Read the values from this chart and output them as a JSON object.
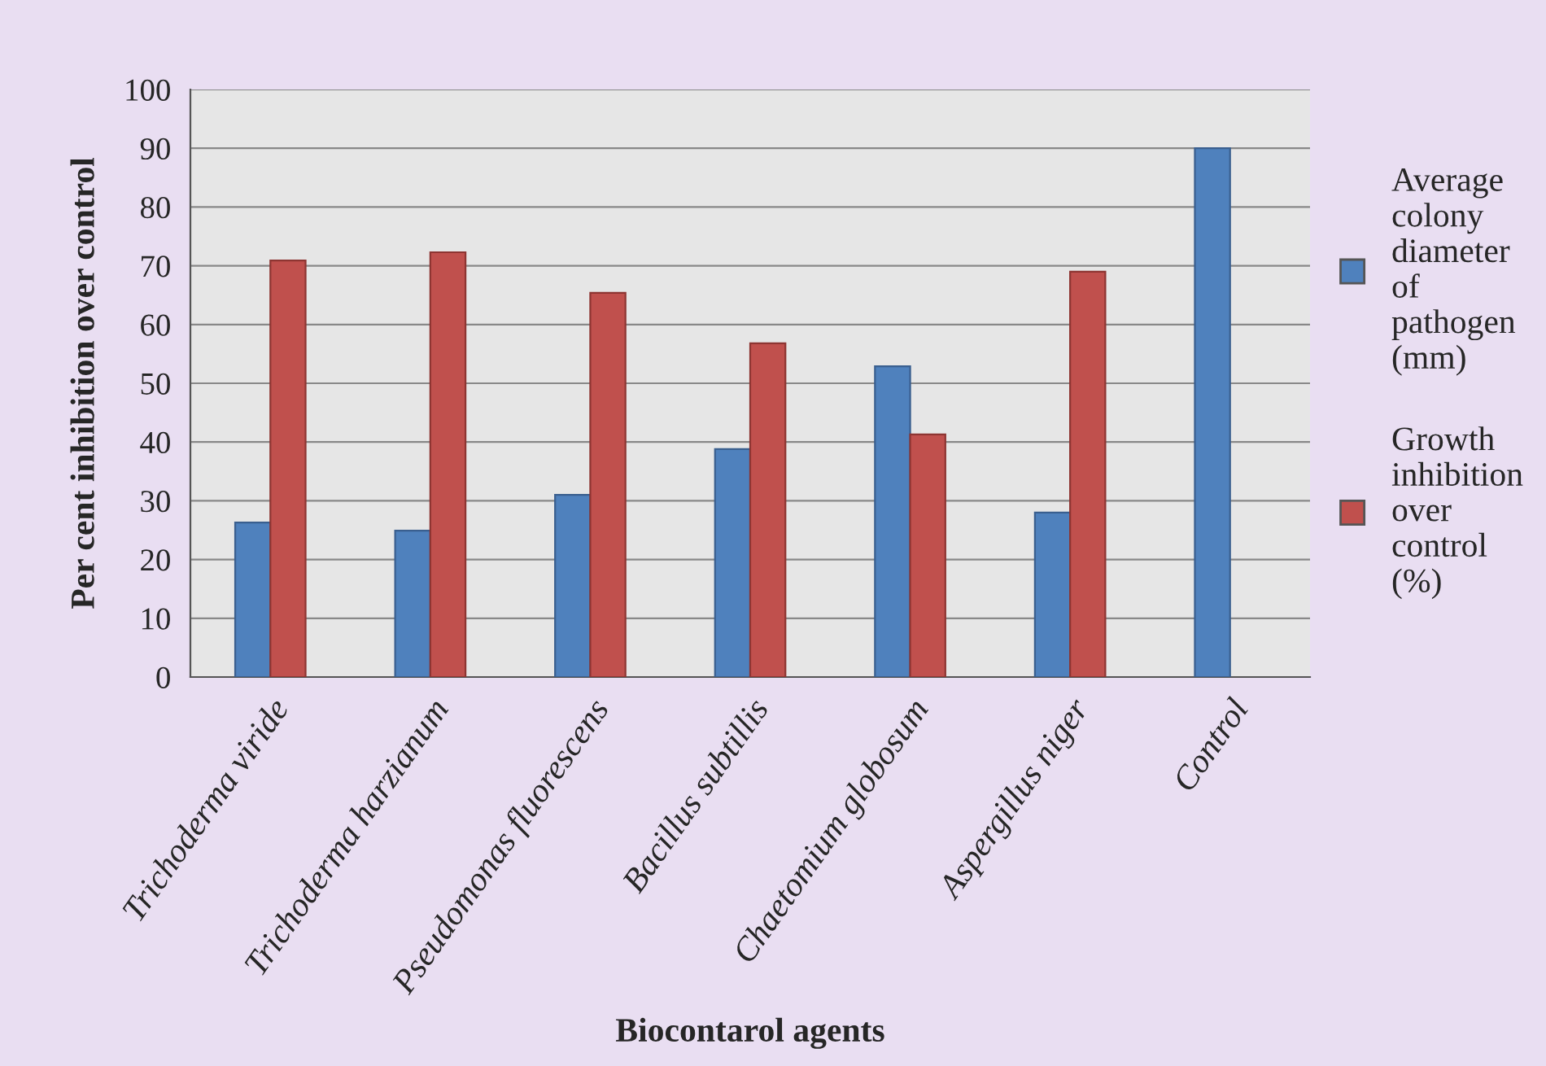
{
  "chart_data": {
    "type": "bar",
    "xlabel": "Biocontarol agents",
    "ylabel": "Per cent inhibition over control",
    "categories": [
      "Trichoderma viride",
      "Trichoderma harzianum",
      "Pseudomonas fluorescens",
      "Bacillus subtillis",
      "Chaetomium globosum",
      "Aspergillus niger",
      "Control"
    ],
    "series": [
      {
        "name": "Average colony diameter of pathogen (mm)",
        "color": "#4f81bd",
        "values": [
          26.3,
          24.9,
          31.0,
          38.8,
          52.9,
          28.0,
          90.0
        ]
      },
      {
        "name": "Growth inhibition over control (%)",
        "color": "#c0504d",
        "values": [
          70.9,
          72.3,
          65.4,
          56.8,
          41.3,
          69.0,
          null
        ]
      }
    ],
    "ylim": [
      0,
      100
    ],
    "yticks": [
      0,
      10,
      20,
      30,
      40,
      50,
      60,
      70,
      80,
      90,
      100
    ],
    "grid": "y",
    "legend": "right"
  }
}
